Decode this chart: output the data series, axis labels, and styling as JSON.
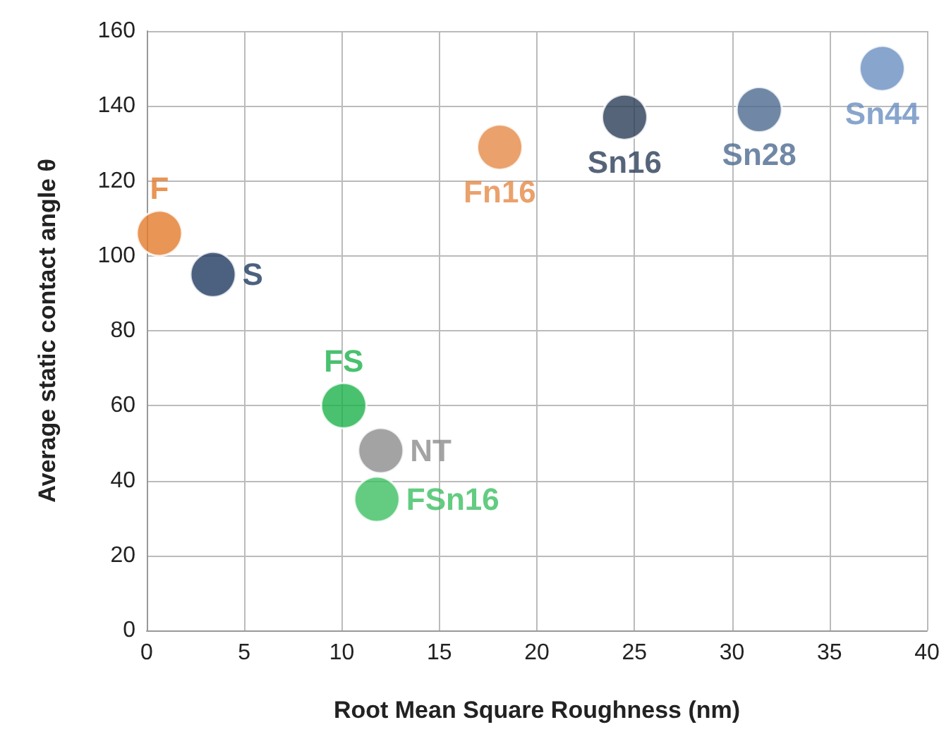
{
  "chart_data": {
    "type": "scatter",
    "xlabel": "Root Mean Square Roughness (nm)",
    "ylabel": "Average static contact angle θ",
    "xlim": [
      0,
      40
    ],
    "xticks": [
      0,
      5,
      10,
      15,
      20,
      25,
      30,
      35,
      40
    ],
    "ylim": [
      0,
      160
    ],
    "yticks": [
      0,
      20,
      40,
      60,
      80,
      100,
      120,
      140,
      160
    ],
    "grid": true,
    "marker": "circle",
    "legend": false,
    "series": [
      {
        "name": "F",
        "color": "#e47a2a",
        "x": [
          0.65
        ],
        "values": [
          106
        ]
      },
      {
        "name": "S",
        "color": "#1f3a5f",
        "x": [
          3.4
        ],
        "values": [
          95
        ]
      },
      {
        "name": "FS",
        "color": "#1db24b",
        "x": [
          10.1
        ],
        "values": [
          60
        ]
      },
      {
        "name": "NT",
        "color": "#8c8c8c",
        "x": [
          12
        ],
        "values": [
          48
        ]
      },
      {
        "name": "FSn16",
        "color": "#3cbf62",
        "x": [
          11.8
        ],
        "values": [
          35
        ]
      },
      {
        "name": "Fn16",
        "color": "#e58a47",
        "x": [
          18.1
        ],
        "values": [
          129
        ]
      },
      {
        "name": "Sn16",
        "color": "#2a3d57",
        "x": [
          24.5
        ],
        "values": [
          137
        ]
      },
      {
        "name": "Sn28",
        "color": "#4c6a90",
        "x": [
          31.4
        ],
        "values": [
          139
        ]
      },
      {
        "name": "Sn44",
        "color": "#6a8fc0",
        "x": [
          37.7
        ],
        "values": [
          150
        ]
      }
    ]
  }
}
